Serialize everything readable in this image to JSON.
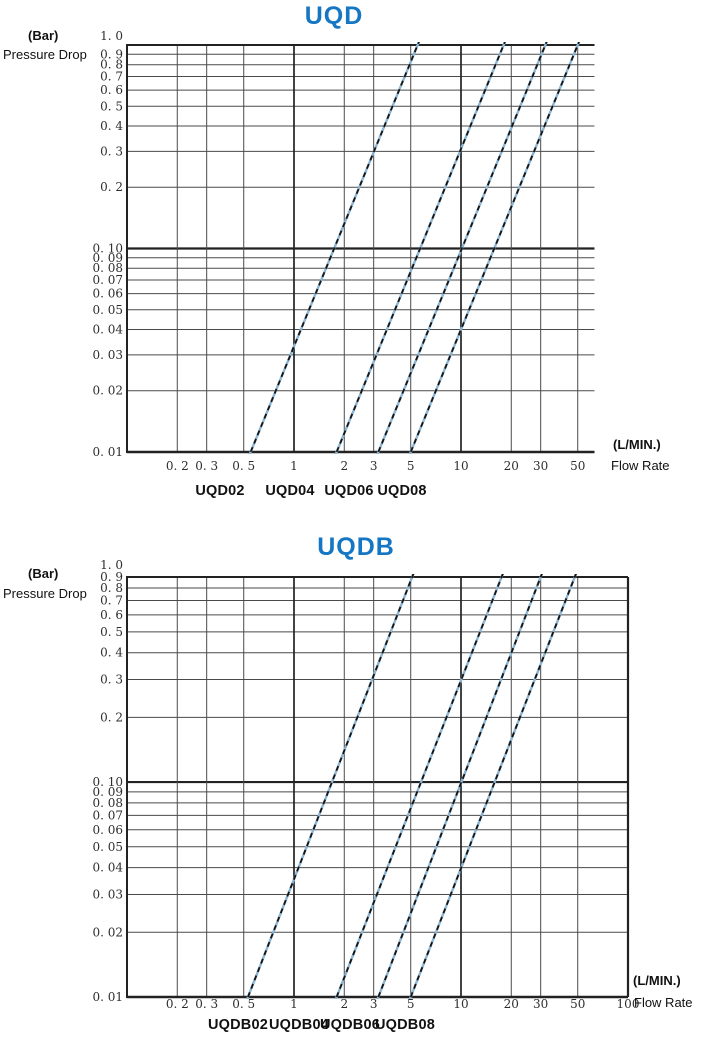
{
  "colors": {
    "title_blue": "#1576C3",
    "grid": "#4a4a4a",
    "grid_major": "#222222",
    "line_blue": "#8ab4d2",
    "line_dash": "#141414"
  },
  "chart_data": [
    {
      "type": "line",
      "title": "UQD",
      "x_scale": "log",
      "y_scale": "log",
      "grid": true,
      "legend_position": "below-axis",
      "x_axis": {
        "unit": "(L/MIN.)",
        "label": "Flow Rate",
        "lim": [
          0.1,
          63
        ],
        "ticks": [
          {
            "v": 0.2,
            "label": "0. 2"
          },
          {
            "v": 0.3,
            "label": "0. 3"
          },
          {
            "v": 0.5,
            "label": "0. 5"
          },
          {
            "v": 1,
            "label": "1"
          },
          {
            "v": 2,
            "label": "2"
          },
          {
            "v": 3,
            "label": "3"
          },
          {
            "v": 5,
            "label": "5"
          },
          {
            "v": 10,
            "label": "10"
          },
          {
            "v": 20,
            "label": "20"
          },
          {
            "v": 30,
            "label": "30"
          },
          {
            "v": 50,
            "label": "50"
          }
        ]
      },
      "y_axis": {
        "unit": "(Bar)",
        "label": "Pressure Drop",
        "lim": [
          0.01,
          1.0
        ],
        "ticks": [
          {
            "v": 1.0,
            "label": "1. 0",
            "dy": -9
          },
          {
            "v": 0.9,
            "label": "0. 9"
          },
          {
            "v": 0.8,
            "label": "0. 8"
          },
          {
            "v": 0.7,
            "label": "0. 7"
          },
          {
            "v": 0.6,
            "label": "0. 6"
          },
          {
            "v": 0.5,
            "label": "0. 5"
          },
          {
            "v": 0.4,
            "label": "0. 4"
          },
          {
            "v": 0.3,
            "label": "0. 3"
          },
          {
            "v": 0.2,
            "label": "0. 2"
          },
          {
            "v": 0.1,
            "label": "0. 10"
          },
          {
            "v": 0.09,
            "label": "0. 09"
          },
          {
            "v": 0.08,
            "label": "0. 08"
          },
          {
            "v": 0.07,
            "label": "0. 07"
          },
          {
            "v": 0.06,
            "label": "0. 06"
          },
          {
            "v": 0.05,
            "label": "0. 05"
          },
          {
            "v": 0.04,
            "label": "0. 04"
          },
          {
            "v": 0.03,
            "label": "0. 03"
          },
          {
            "v": 0.02,
            "label": "0. 02"
          },
          {
            "v": 0.01,
            "label": "0. 01"
          }
        ]
      },
      "series": [
        {
          "name": "UQD02",
          "points": [
            [
              0.55,
              0.01
            ],
            [
              5.5,
              1.0
            ]
          ]
        },
        {
          "name": "UQD04",
          "points": [
            [
              1.8,
              0.01
            ],
            [
              18,
              1.0
            ]
          ]
        },
        {
          "name": "UQD06",
          "points": [
            [
              3.2,
              0.01
            ],
            [
              32,
              1.0
            ]
          ]
        },
        {
          "name": "UQD08",
          "points": [
            [
              5.0,
              0.01
            ],
            [
              50,
              1.0
            ]
          ]
        }
      ]
    },
    {
      "type": "line",
      "title": "UQDB",
      "x_scale": "log",
      "y_scale": "log",
      "grid": true,
      "legend_position": "below-axis",
      "x_axis": {
        "unit": "(L/MIN.)",
        "label": "Flow Rate",
        "lim": [
          0.1,
          100
        ],
        "ticks": [
          {
            "v": 0.2,
            "label": "0. 2"
          },
          {
            "v": 0.3,
            "label": "0. 3"
          },
          {
            "v": 0.5,
            "label": "0. 5"
          },
          {
            "v": 1,
            "label": "1"
          },
          {
            "v": 2,
            "label": "2"
          },
          {
            "v": 3,
            "label": "3"
          },
          {
            "v": 5,
            "label": "5"
          },
          {
            "v": 10,
            "label": "10"
          },
          {
            "v": 20,
            "label": "20"
          },
          {
            "v": 30,
            "label": "30"
          },
          {
            "v": 50,
            "label": "50"
          },
          {
            "v": 100,
            "label": "100"
          }
        ]
      },
      "y_axis": {
        "unit": "(Bar)",
        "label": "Pressure Drop",
        "lim": [
          0.01,
          0.9
        ],
        "ticks": [
          {
            "v": 1.0,
            "label": "1. 0"
          },
          {
            "v": 0.9,
            "label": "0. 9"
          },
          {
            "v": 0.8,
            "label": "0. 8"
          },
          {
            "v": 0.7,
            "label": "0. 7"
          },
          {
            "v": 0.6,
            "label": "0. 6"
          },
          {
            "v": 0.5,
            "label": "0. 5"
          },
          {
            "v": 0.4,
            "label": "0. 4"
          },
          {
            "v": 0.3,
            "label": "0. 3"
          },
          {
            "v": 0.2,
            "label": "0. 2"
          },
          {
            "v": 0.1,
            "label": "0. 10"
          },
          {
            "v": 0.09,
            "label": "0. 09"
          },
          {
            "v": 0.08,
            "label": "0. 08"
          },
          {
            "v": 0.07,
            "label": "0. 07"
          },
          {
            "v": 0.06,
            "label": "0. 06"
          },
          {
            "v": 0.05,
            "label": "0. 05"
          },
          {
            "v": 0.04,
            "label": "0. 04"
          },
          {
            "v": 0.03,
            "label": "0. 03"
          },
          {
            "v": 0.02,
            "label": "0. 02"
          },
          {
            "v": 0.01,
            "label": "0. 01"
          }
        ]
      },
      "series": [
        {
          "name": "UQDB02",
          "points": [
            [
              0.53,
              0.01
            ],
            [
              5.1,
              0.9
            ]
          ]
        },
        {
          "name": "UQDB04",
          "points": [
            [
              1.8,
              0.01
            ],
            [
              17.5,
              0.9
            ]
          ]
        },
        {
          "name": "UQDB06",
          "points": [
            [
              3.2,
              0.01
            ],
            [
              30,
              0.9
            ]
          ]
        },
        {
          "name": "UQDB08",
          "points": [
            [
              5.0,
              0.01
            ],
            [
              48,
              0.9
            ]
          ]
        }
      ]
    }
  ]
}
